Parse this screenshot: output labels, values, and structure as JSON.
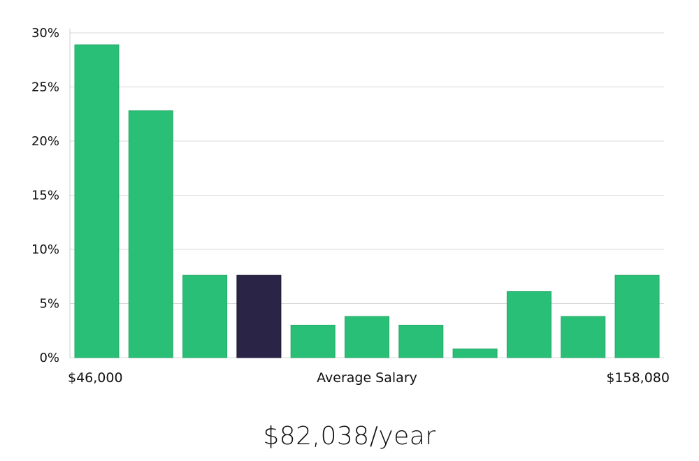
{
  "chart_data": {
    "type": "bar",
    "title": "",
    "xlabel": "Average Salary",
    "ylabel": "",
    "ylim": [
      0,
      30
    ],
    "yticks": [
      "0%",
      "5%",
      "10%",
      "15%",
      "20%",
      "25%",
      "30%"
    ],
    "ytick_values": [
      0,
      5,
      10,
      15,
      20,
      25,
      30
    ],
    "x_min_label": "$46,000",
    "x_max_label": "$158,080",
    "grid": true,
    "values": [
      28.9,
      22.8,
      7.6,
      7.6,
      3.0,
      3.8,
      3.0,
      0.8,
      6.1,
      3.8,
      7.6
    ],
    "highlight_index": 3,
    "colors": {
      "bar": "#2abf76",
      "highlight": "#2a2546",
      "grid": "#d9d9d9"
    }
  },
  "salary": {
    "display": "$82,038/year"
  }
}
